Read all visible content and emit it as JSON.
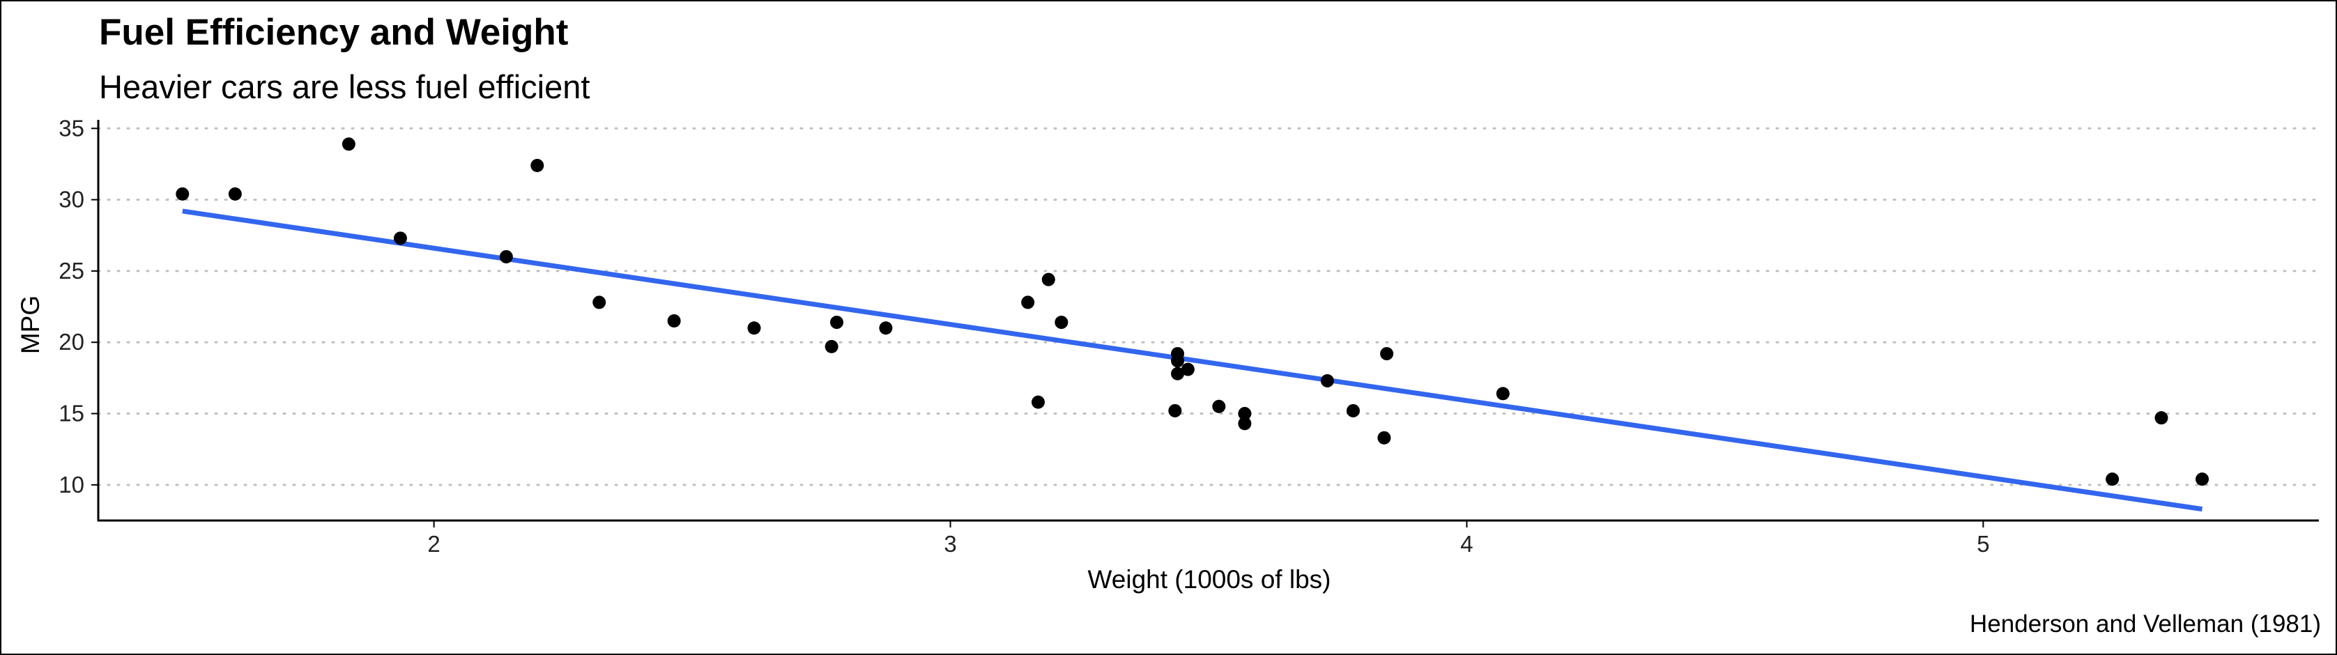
{
  "chart_data": {
    "type": "scatter",
    "title": "Fuel Efficiency and Weight",
    "subtitle": "Heavier cars are less fuel efficient",
    "xlabel": "Weight (1000s of lbs)",
    "ylabel": "MPG",
    "caption": "Henderson and Velleman (1981)",
    "xlim": [
      1.35,
      5.65
    ],
    "ylim": [
      7.5,
      35.6
    ],
    "x_ticks": [
      2,
      3,
      4,
      5
    ],
    "y_ticks": [
      10,
      15,
      20,
      25,
      30,
      35
    ],
    "grid": "horizontal-dotted",
    "series": [
      {
        "points": [
          {
            "x": 2.62,
            "y": 21.0
          },
          {
            "x": 2.875,
            "y": 21.0
          },
          {
            "x": 2.32,
            "y": 22.8
          },
          {
            "x": 3.215,
            "y": 21.4
          },
          {
            "x": 3.44,
            "y": 18.7
          },
          {
            "x": 3.46,
            "y": 18.1
          },
          {
            "x": 3.57,
            "y": 14.3
          },
          {
            "x": 3.19,
            "y": 24.4
          },
          {
            "x": 3.15,
            "y": 22.8
          },
          {
            "x": 3.44,
            "y": 19.2
          },
          {
            "x": 3.44,
            "y": 17.8
          },
          {
            "x": 4.07,
            "y": 16.4
          },
          {
            "x": 3.73,
            "y": 17.3
          },
          {
            "x": 3.78,
            "y": 15.2
          },
          {
            "x": 5.25,
            "y": 10.4
          },
          {
            "x": 5.424,
            "y": 10.4
          },
          {
            "x": 5.345,
            "y": 14.7
          },
          {
            "x": 2.2,
            "y": 32.4
          },
          {
            "x": 1.615,
            "y": 30.4
          },
          {
            "x": 1.835,
            "y": 33.9
          },
          {
            "x": 2.465,
            "y": 21.5
          },
          {
            "x": 3.52,
            "y": 15.5
          },
          {
            "x": 3.435,
            "y": 15.2
          },
          {
            "x": 3.84,
            "y": 13.3
          },
          {
            "x": 3.845,
            "y": 19.2
          },
          {
            "x": 1.935,
            "y": 27.3
          },
          {
            "x": 2.14,
            "y": 26.0
          },
          {
            "x": 1.513,
            "y": 30.4
          },
          {
            "x": 3.17,
            "y": 15.8
          },
          {
            "x": 2.77,
            "y": 19.7
          },
          {
            "x": 3.57,
            "y": 15.0
          },
          {
            "x": 2.78,
            "y": 21.4
          }
        ]
      }
    ],
    "trend_line": {
      "x": [
        1.513,
        5.424
      ],
      "y": [
        29.2,
        8.3
      ]
    },
    "colors": {
      "points": "#000000",
      "trend": "#3366ee",
      "grid": "#bfbfbf",
      "axis": "#000000"
    }
  }
}
